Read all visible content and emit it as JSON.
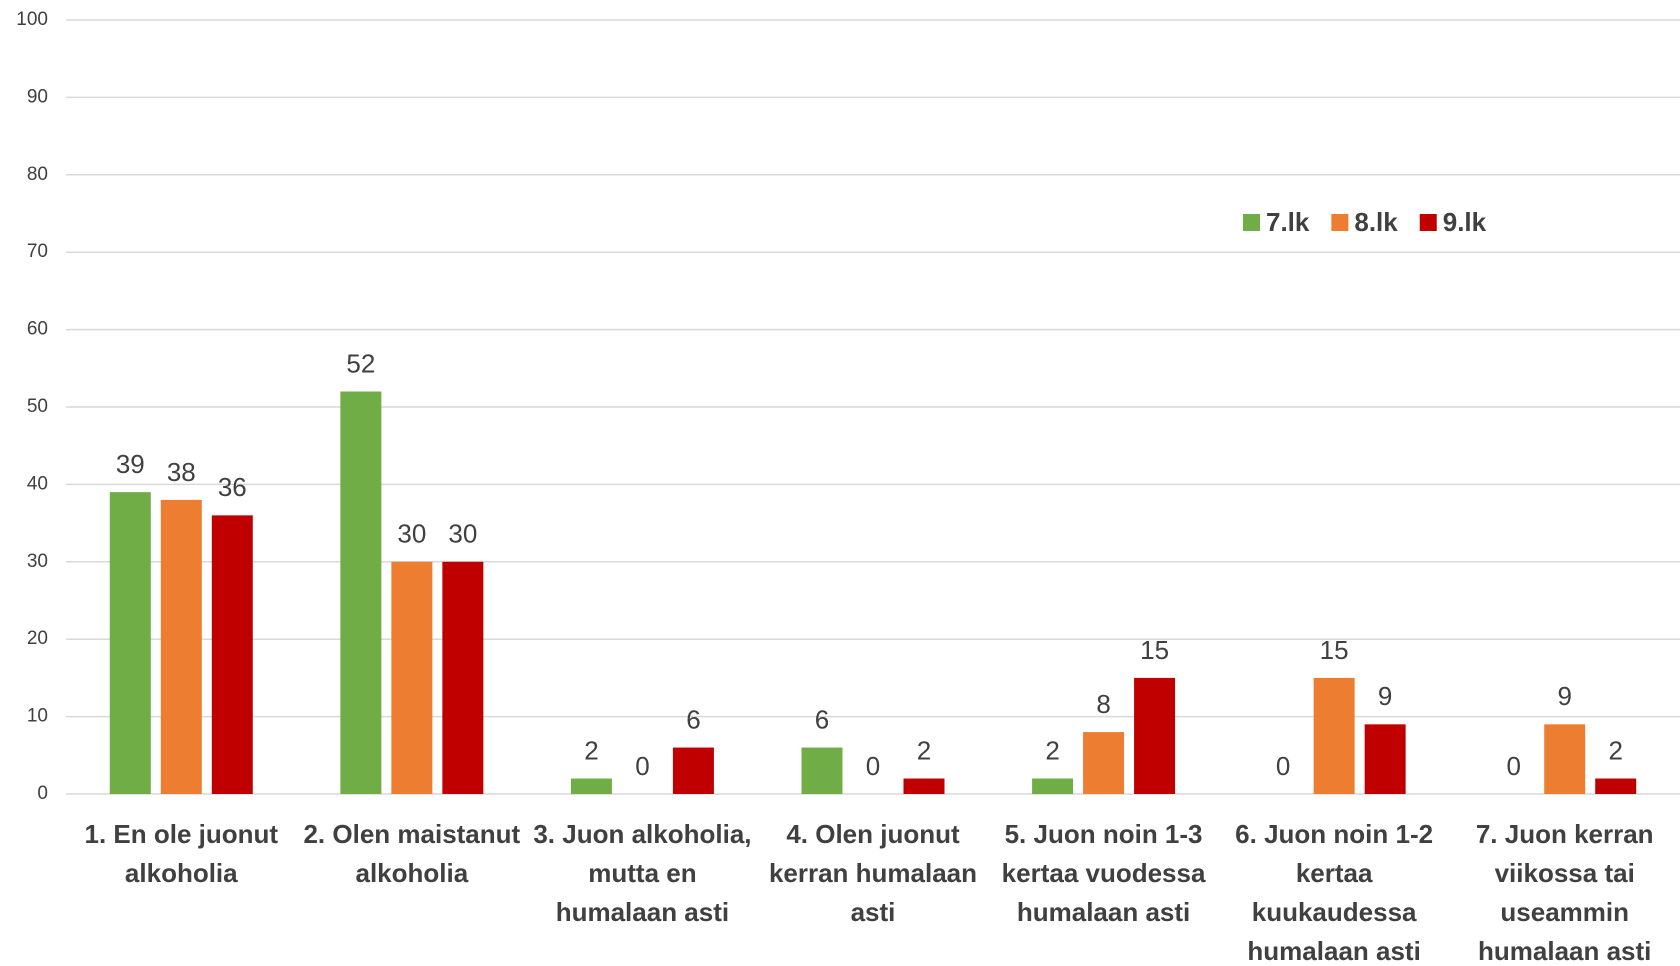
{
  "chart_data": {
    "type": "bar",
    "categories": [
      "1. En ole juonut alkoholia",
      "2. Olen maistanut alkoholia",
      "3. Juon alkoholia, mutta en humalaan asti",
      "4. Olen juonut kerran humalaan asti",
      "5. Juon noin 1-3 kertaa vuodessa humalaan asti",
      "6. Juon noin 1-2 kertaa kuukaudessa humalaan asti",
      "7. Juon kerran viikossa tai useammin humalaan asti"
    ],
    "series": [
      {
        "name": "7.lk",
        "color": "#70ad47",
        "values": [
          39,
          52,
          2,
          6,
          2,
          0,
          0
        ]
      },
      {
        "name": "8.lk",
        "color": "#ed7d31",
        "values": [
          38,
          30,
          0,
          0,
          8,
          15,
          9
        ]
      },
      {
        "name": "9.lk",
        "color": "#c00000",
        "values": [
          36,
          30,
          6,
          2,
          15,
          9,
          2
        ]
      }
    ],
    "ylim": [
      0,
      100
    ],
    "yticks": [
      0,
      10,
      20,
      30,
      40,
      50,
      60,
      70,
      80,
      90,
      100
    ],
    "grid": true,
    "legend": "upper right"
  }
}
